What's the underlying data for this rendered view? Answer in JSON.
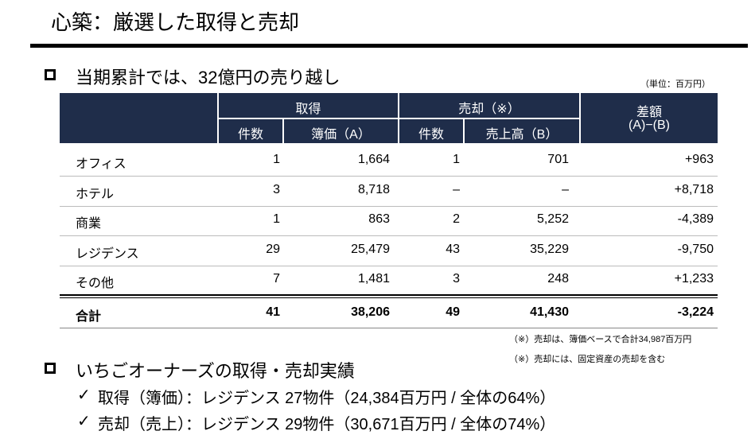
{
  "header": {
    "title": "心築：厳選した取得と売却"
  },
  "section1": {
    "heading": "当期累計では、32億円の売り越し",
    "unit": "（単位：百万円）"
  },
  "table": {
    "group_headers": [
      "取得",
      "売却（※）",
      "差額"
    ],
    "diff_sub": "(A)−(B)",
    "sub_headers": [
      "件数",
      "簿価（A）",
      "件数",
      "売上高（B）"
    ],
    "rows": [
      [
        "オフィス",
        "1",
        "1,664",
        "1",
        "701",
        "+963"
      ],
      [
        "ホテル",
        "3",
        "8,718",
        "–",
        "–",
        "+8,718"
      ],
      [
        "商業",
        "1",
        "863",
        "2",
        "5,252",
        "-4,389"
      ],
      [
        "レジデンス",
        "29",
        "25,479",
        "43",
        "35,229",
        "-9,750"
      ],
      [
        "その他",
        "7",
        "1,481",
        "3",
        "248",
        "+1,233"
      ]
    ],
    "total": [
      "合計",
      "41",
      "38,206",
      "49",
      "41,430",
      "-3,224"
    ]
  },
  "notes": [
    "（※）売却は、簿価ベースで合計34,987百万円",
    "（※）売却には、固定資産の売却を含む"
  ],
  "section2": {
    "heading": "いちごオーナーズの取得・売却実績",
    "items": [
      "取得（簿価）：レジデンス 27物件（24,384百万円 / 全体の64%）",
      "売却（売上）：レジデンス 29物件（30,671百万円 / 全体の74%）"
    ]
  }
}
